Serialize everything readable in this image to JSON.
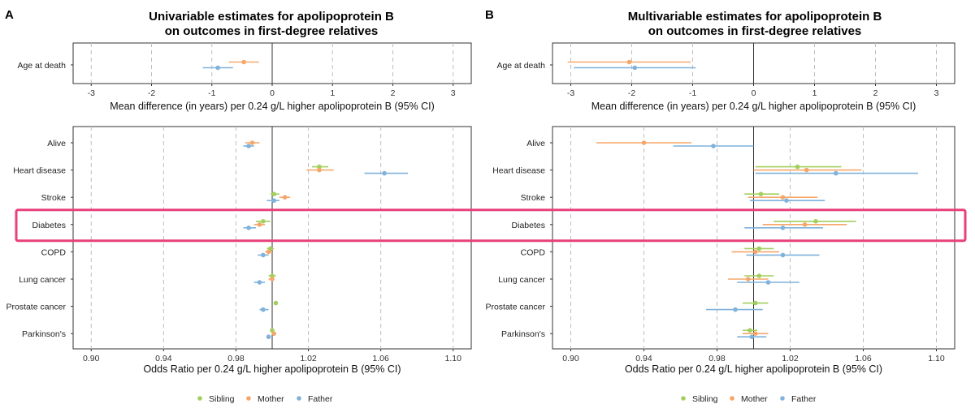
{
  "colors": {
    "Sibling": "#a3cf5c",
    "Mother": "#f5a76a",
    "Father": "#7fb2dc",
    "highlight": "#e8407a",
    "gridline": "#bdbdbd"
  },
  "legend": [
    {
      "name": "Sibling",
      "color": "#a3cf5c"
    },
    {
      "name": "Mother",
      "color": "#f5a76a"
    },
    {
      "name": "Father",
      "color": "#7fb2dc"
    }
  ],
  "panels": [
    {
      "letter": "A",
      "title_line1": "Univariable estimates for apolipoprotein B",
      "title_line2": "on outcomes in first-degree relatives",
      "legend": [
        "Sibling",
        "Mother",
        "Father"
      ]
    },
    {
      "letter": "B",
      "title_line1": "Multivariable estimates for apolipoprotein B",
      "title_line2": "on outcomes in first-degree relatives",
      "legend": [
        "Sibling",
        "Mother",
        "Father"
      ]
    }
  ],
  "highlight": {
    "row": "Diabetes",
    "color": "#e8407a"
  },
  "chart_data": [
    {
      "type": "scatter",
      "panel": "A",
      "subplot": "top",
      "xlabel": "Mean difference (in years) per 0.24 g/L higher apolipoprotein B (95% CI)",
      "xlim": [
        -3.3,
        3.3
      ],
      "xticks": [
        -3,
        -2,
        -1,
        0,
        1,
        2,
        3
      ],
      "xtick_labels": [
        "-3",
        "-2",
        "-1",
        "0",
        "1",
        "2",
        "3"
      ],
      "reference_line": 0,
      "grid": "dashed vertical",
      "rows": [
        "Age at death"
      ],
      "series": [
        {
          "name": "Mother",
          "estimates": [
            {
              "row": "Age at death",
              "est": -0.47,
              "lo": -0.72,
              "hi": -0.22
            }
          ]
        },
        {
          "name": "Father",
          "estimates": [
            {
              "row": "Age at death",
              "est": -0.9,
              "lo": -1.15,
              "hi": -0.65
            }
          ]
        }
      ]
    },
    {
      "type": "scatter",
      "panel": "A",
      "subplot": "bottom",
      "xlabel": "Odds Ratio per 0.24 g/L higher apolipoprotein B (95% CI)",
      "xlim": [
        0.89,
        1.11
      ],
      "xticks": [
        0.9,
        0.94,
        0.98,
        1.02,
        1.06,
        1.1
      ],
      "xtick_labels": [
        "0.90",
        "0.94",
        "0.98",
        "1.02",
        "1.06",
        "1.10"
      ],
      "reference_line": 1,
      "grid": "dashed vertical",
      "rows": [
        "Alive",
        "Heart disease",
        "Stroke",
        "Diabetes",
        "COPD",
        "Lung cancer",
        "Prostate cancer",
        "Parkinson's"
      ],
      "series": [
        {
          "name": "Sibling",
          "estimates": [
            {
              "row": "Heart disease",
              "est": 1.026,
              "lo": 1.022,
              "hi": 1.031
            },
            {
              "row": "Stroke",
              "est": 1.001,
              "lo": 0.999,
              "hi": 1.004
            },
            {
              "row": "Diabetes",
              "est": 0.995,
              "lo": 0.991,
              "hi": 0.999
            },
            {
              "row": "COPD",
              "est": 0.999,
              "lo": 0.997,
              "hi": 1.001
            },
            {
              "row": "Lung cancer",
              "est": 1.0,
              "lo": 0.998,
              "hi": 1.002
            },
            {
              "row": "Prostate cancer",
              "est": 1.002,
              "lo": 1.001,
              "hi": 1.003
            },
            {
              "row": "Parkinson's",
              "est": 1.0,
              "lo": 0.999,
              "hi": 1.001
            }
          ]
        },
        {
          "name": "Mother",
          "estimates": [
            {
              "row": "Alive",
              "est": 0.989,
              "lo": 0.985,
              "hi": 0.993
            },
            {
              "row": "Heart disease",
              "est": 1.026,
              "lo": 1.019,
              "hi": 1.034
            },
            {
              "row": "Stroke",
              "est": 1.007,
              "lo": 1.004,
              "hi": 1.01
            },
            {
              "row": "Diabetes",
              "est": 0.993,
              "lo": 0.99,
              "hi": 0.996
            },
            {
              "row": "COPD",
              "est": 0.998,
              "lo": 0.996,
              "hi": 1.0
            },
            {
              "row": "Lung cancer",
              "est": 1.0,
              "lo": 0.998,
              "hi": 1.001
            },
            {
              "row": "Parkinson's",
              "est": 1.001,
              "lo": 1.0,
              "hi": 1.002
            }
          ]
        },
        {
          "name": "Father",
          "estimates": [
            {
              "row": "Alive",
              "est": 0.987,
              "lo": 0.984,
              "hi": 0.99
            },
            {
              "row": "Heart disease",
              "est": 1.062,
              "lo": 1.051,
              "hi": 1.075
            },
            {
              "row": "Stroke",
              "est": 1.001,
              "lo": 0.997,
              "hi": 1.004
            },
            {
              "row": "Diabetes",
              "est": 0.987,
              "lo": 0.984,
              "hi": 0.991
            },
            {
              "row": "COPD",
              "est": 0.995,
              "lo": 0.992,
              "hi": 0.998
            },
            {
              "row": "Lung cancer",
              "est": 0.993,
              "lo": 0.99,
              "hi": 0.996
            },
            {
              "row": "Prostate cancer",
              "est": 0.995,
              "lo": 0.993,
              "hi": 0.998
            },
            {
              "row": "Parkinson's",
              "est": 0.998,
              "lo": 0.997,
              "hi": 0.999
            }
          ]
        }
      ]
    },
    {
      "type": "scatter",
      "panel": "B",
      "subplot": "top",
      "xlabel": "Mean difference (in years) per 0.24 g/L higher apolipoprotein B (95% CI)",
      "xlim": [
        -3.3,
        3.3
      ],
      "xticks": [
        -3,
        -2,
        -1,
        0,
        1,
        2,
        3
      ],
      "xtick_labels": [
        "-3",
        "-2",
        "-1",
        "0",
        "1",
        "2",
        "3"
      ],
      "reference_line": 0,
      "grid": "dashed vertical",
      "rows": [
        "Age at death"
      ],
      "series": [
        {
          "name": "Mother",
          "estimates": [
            {
              "row": "Age at death",
              "est": -2.04,
              "lo": -3.05,
              "hi": -1.03
            }
          ]
        },
        {
          "name": "Father",
          "estimates": [
            {
              "row": "Age at death",
              "est": -1.95,
              "lo": -2.95,
              "hi": -0.95
            }
          ]
        }
      ]
    },
    {
      "type": "scatter",
      "panel": "B",
      "subplot": "bottom",
      "xlabel": "Odds Ratio per 0.24 g/L higher apolipoprotein B (95% CI)",
      "xlim": [
        0.89,
        1.11
      ],
      "xticks": [
        0.9,
        0.94,
        0.98,
        1.02,
        1.06,
        1.1
      ],
      "xtick_labels": [
        "0.90",
        "0.94",
        "0.98",
        "1.02",
        "1.06",
        "1.10"
      ],
      "reference_line": 1,
      "grid": "dashed vertical",
      "rows": [
        "Alive",
        "Heart disease",
        "Stroke",
        "Diabetes",
        "COPD",
        "Lung cancer",
        "Prostate cancer",
        "Parkinson's"
      ],
      "series": [
        {
          "name": "Sibling",
          "estimates": [
            {
              "row": "Heart disease",
              "est": 1.024,
              "lo": 1.001,
              "hi": 1.048
            },
            {
              "row": "Stroke",
              "est": 1.004,
              "lo": 0.995,
              "hi": 1.014
            },
            {
              "row": "Diabetes",
              "est": 1.034,
              "lo": 1.011,
              "hi": 1.056
            },
            {
              "row": "COPD",
              "est": 1.003,
              "lo": 0.995,
              "hi": 1.011
            },
            {
              "row": "Lung cancer",
              "est": 1.003,
              "lo": 0.995,
              "hi": 1.011
            },
            {
              "row": "Prostate cancer",
              "est": 1.001,
              "lo": 0.994,
              "hi": 1.008
            },
            {
              "row": "Parkinson's",
              "est": 0.998,
              "lo": 0.994,
              "hi": 1.002
            }
          ]
        },
        {
          "name": "Mother",
          "estimates": [
            {
              "row": "Alive",
              "est": 0.94,
              "lo": 0.914,
              "hi": 0.966
            },
            {
              "row": "Heart disease",
              "est": 1.029,
              "lo": 1.0,
              "hi": 1.059
            },
            {
              "row": "Stroke",
              "est": 1.016,
              "lo": 0.997,
              "hi": 1.035
            },
            {
              "row": "Diabetes",
              "est": 1.028,
              "lo": 1.005,
              "hi": 1.051
            },
            {
              "row": "COPD",
              "est": 1.001,
              "lo": 0.988,
              "hi": 1.014
            },
            {
              "row": "Lung cancer",
              "est": 0.997,
              "lo": 0.986,
              "hi": 1.008
            },
            {
              "row": "Parkinson's",
              "est": 1.001,
              "lo": 0.994,
              "hi": 1.008
            }
          ]
        },
        {
          "name": "Father",
          "estimates": [
            {
              "row": "Alive",
              "est": 0.978,
              "lo": 0.956,
              "hi": 1.0
            },
            {
              "row": "Heart disease",
              "est": 1.045,
              "lo": 1.001,
              "hi": 1.09
            },
            {
              "row": "Stroke",
              "est": 1.018,
              "lo": 0.998,
              "hi": 1.039
            },
            {
              "row": "Diabetes",
              "est": 1.016,
              "lo": 0.995,
              "hi": 1.038
            },
            {
              "row": "COPD",
              "est": 1.016,
              "lo": 0.996,
              "hi": 1.036
            },
            {
              "row": "Lung cancer",
              "est": 1.008,
              "lo": 0.991,
              "hi": 1.025
            },
            {
              "row": "Prostate cancer",
              "est": 0.99,
              "lo": 0.974,
              "hi": 1.005
            },
            {
              "row": "Parkinson's",
              "est": 0.999,
              "lo": 0.991,
              "hi": 1.007
            }
          ]
        }
      ]
    }
  ]
}
